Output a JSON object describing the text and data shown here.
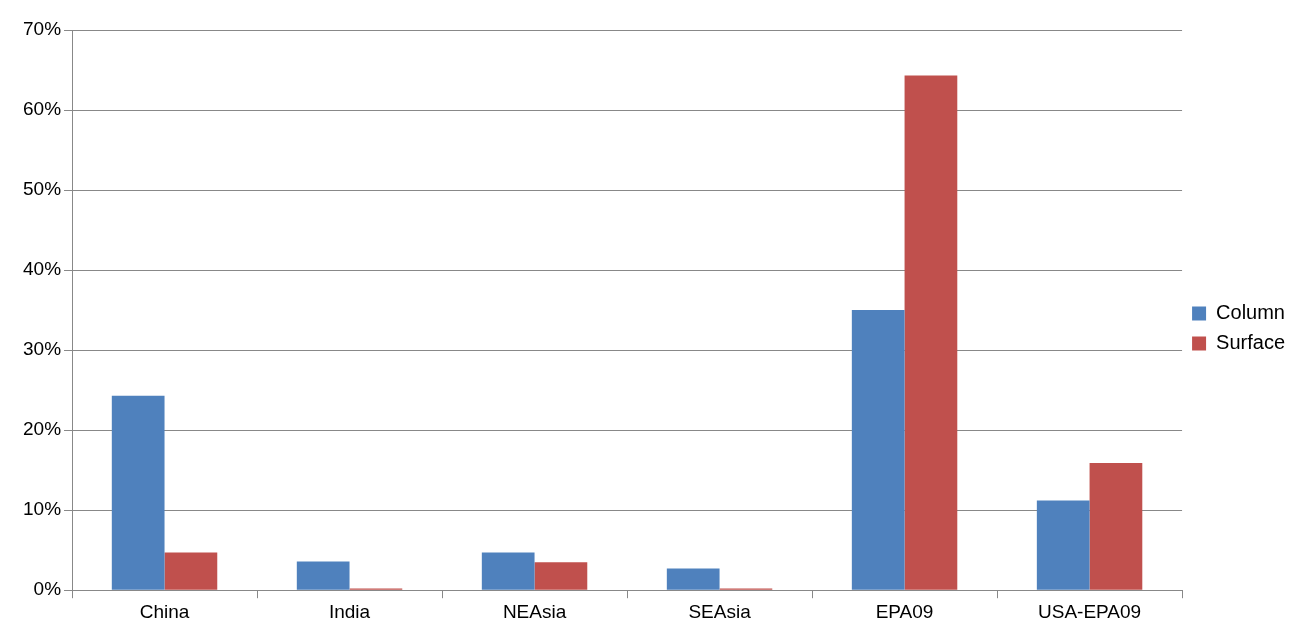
{
  "chart_data": {
    "type": "bar",
    "categories": [
      "China",
      "India",
      "NEAsia",
      "SEAsia",
      "EPA09",
      "USA-EPA09"
    ],
    "series": [
      {
        "name": "Column",
        "color": "#4f81bd",
        "values": [
          24.3,
          3.6,
          4.7,
          2.7,
          35,
          11.2
        ]
      },
      {
        "name": "Surface",
        "color": "#c0504d",
        "values": [
          4.7,
          0.2,
          3.5,
          0.2,
          64.3,
          15.9
        ]
      }
    ],
    "ylim": [
      0,
      70
    ],
    "yticks": [
      {
        "value": 0,
        "label": "0%"
      },
      {
        "value": 10,
        "label": "10%"
      },
      {
        "value": 20,
        "label": "20%"
      },
      {
        "value": 30,
        "label": "30%"
      },
      {
        "value": 40,
        "label": "40%"
      },
      {
        "value": 50,
        "label": "50%"
      },
      {
        "value": 60,
        "label": "60%"
      },
      {
        "value": 70,
        "label": "70%"
      }
    ],
    "grid": "y",
    "legend": "right"
  }
}
